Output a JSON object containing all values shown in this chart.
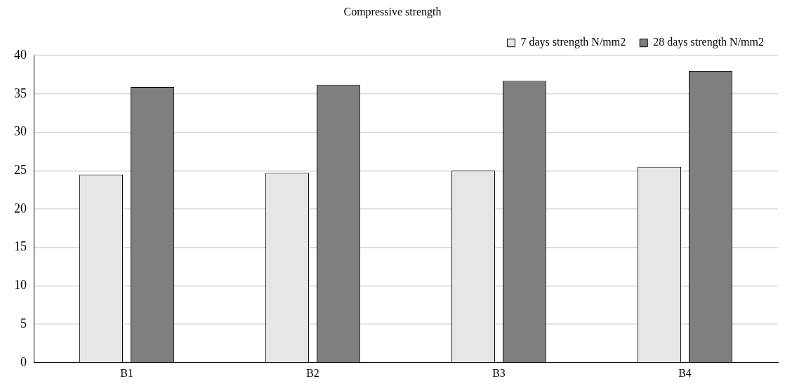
{
  "chart_data": {
    "type": "bar",
    "title": "Compressive strength",
    "categories": [
      "B1",
      "B2",
      "B3",
      "B4"
    ],
    "series": [
      {
        "name": "7 days strength N/mm2",
        "color": "#e6e6e6",
        "values": [
          24.5,
          24.7,
          25.0,
          25.5
        ]
      },
      {
        "name": "28 days strength N/mm2",
        "color": "#7f7f7f",
        "values": [
          35.9,
          36.2,
          36.7,
          38.0
        ]
      }
    ],
    "ylim": [
      0,
      40
    ],
    "yticks": [
      0,
      5,
      10,
      15,
      20,
      25,
      30,
      35,
      40
    ],
    "grid": "y",
    "legend": "top right"
  }
}
